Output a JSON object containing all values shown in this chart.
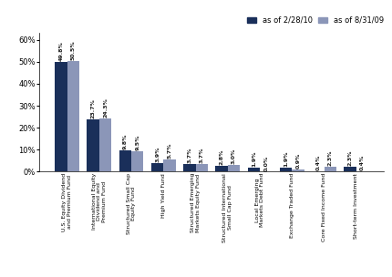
{
  "categories": [
    "U.S. Equity Dividend\nand Premium Fund",
    "International Equity\nDividend and\nPremium Fund",
    "Structured Small Cap\nEquity Fund",
    "High Yield Fund",
    "Structured Emerging\nMarkets Equity Fund",
    "Structured International\nSmall Cap Fund",
    "Local Emerging\nMarkets Debt Fund",
    "Exchange Traded Fund",
    "Core Fixed Income Fund",
    "Short-term Investment"
  ],
  "values_2010": [
    49.8,
    23.7,
    9.8,
    3.9,
    3.7,
    2.8,
    1.9,
    1.9,
    0.4,
    2.3
  ],
  "values_2009": [
    50.5,
    24.3,
    9.5,
    5.7,
    3.7,
    3.0,
    0.0,
    0.9,
    2.3,
    0.4
  ],
  "color_2010": "#1a2f5a",
  "color_2009": "#8b96b8",
  "legend_label_2010": "as of 2/28/10",
  "legend_label_2009": "as of 8/31/09",
  "ylim": [
    0,
    63
  ],
  "yticks": [
    0,
    10,
    20,
    30,
    40,
    50,
    60
  ],
  "ytick_labels": [
    "0%",
    "10%",
    "20%",
    "30%",
    "40%",
    "50%",
    "60%"
  ],
  "bar_width": 0.38,
  "label_fontsize": 4.5,
  "tick_label_fontsize": 4.5,
  "legend_fontsize": 6.0,
  "ytick_fontsize": 6.0,
  "background_color": "#ffffff"
}
